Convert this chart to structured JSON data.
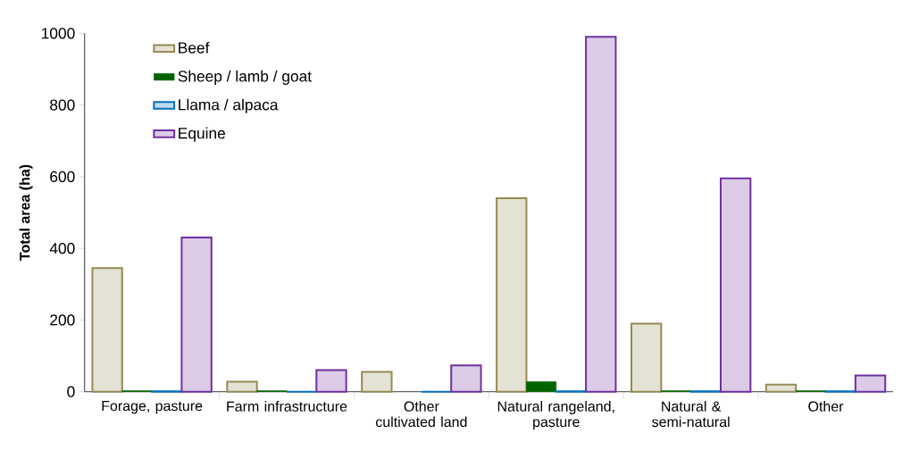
{
  "chart_data": {
    "type": "bar",
    "ylabel": "Total area (ha)",
    "categories": [
      "Forage, pasture",
      "Farm infrastructure",
      "Other cultivated land",
      "Natural rangeland, pasture",
      "Natural & semi-natural",
      "Other"
    ],
    "series": [
      {
        "name": "Beef",
        "color": "#948a54",
        "values": [
          345,
          28,
          55,
          540,
          190,
          20
        ]
      },
      {
        "name": "Sheep / lamb / goat",
        "color": "#006400",
        "values": [
          3,
          3,
          null,
          28,
          3,
          3
        ]
      },
      {
        "name": "Llama / alpaca",
        "color": "#0070c0",
        "values": [
          1,
          0,
          0,
          1,
          1,
          1
        ]
      },
      {
        "name": "Equine",
        "color": "#7030a0",
        "values": [
          430,
          60,
          73,
          990,
          595,
          45
        ]
      }
    ],
    "ylim": [
      0,
      1000
    ],
    "yticks": [
      0,
      200,
      400,
      600,
      800,
      1000
    ],
    "grid": false,
    "legend": "top left"
  }
}
